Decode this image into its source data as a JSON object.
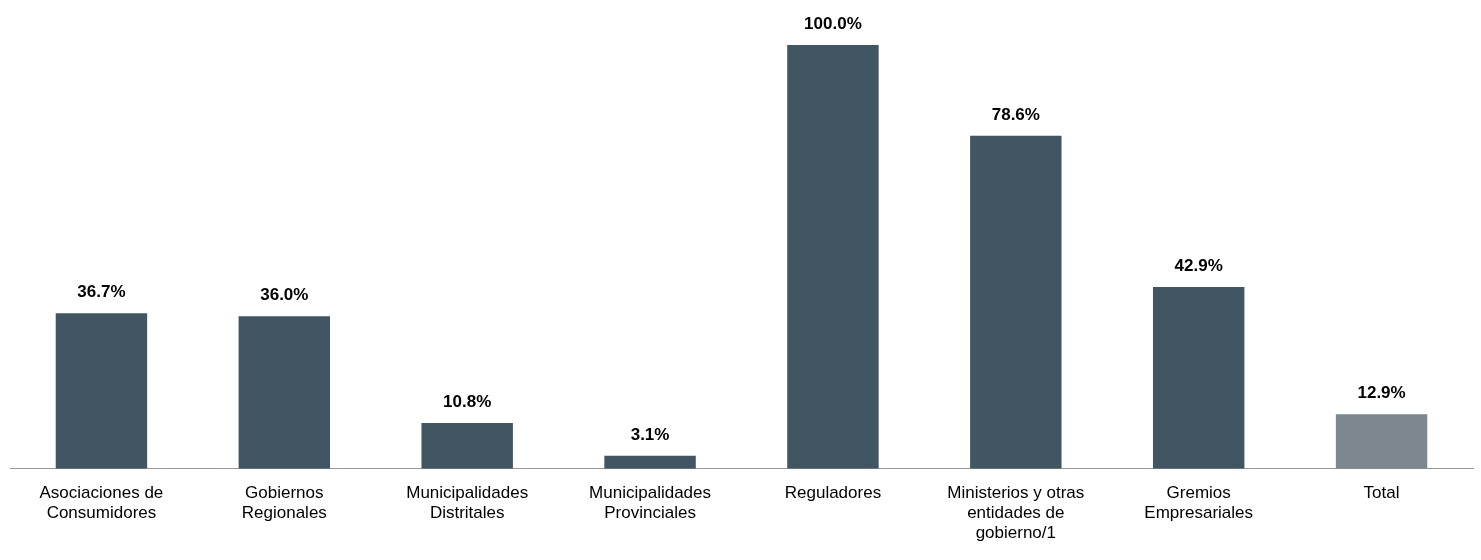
{
  "chart_data": {
    "type": "bar",
    "categories": [
      "Asociaciones de Consumidores",
      "Gobiernos Regionales",
      "Municipalidades Distritales",
      "Municipalidades Provinciales",
      "Reguladores",
      "Ministerios y otras entidades de gobierno/1",
      "Gremios Empresariales",
      "Total"
    ],
    "values": [
      36.7,
      36.0,
      10.8,
      3.1,
      100.0,
      78.6,
      42.9,
      12.9
    ],
    "value_labels": [
      "36.7%",
      "36.0%",
      "10.8%",
      "3.1%",
      "100.0%",
      "78.6%",
      "42.9%",
      "12.9%"
    ],
    "colors": [
      "#415563",
      "#415563",
      "#415563",
      "#415563",
      "#415563",
      "#415563",
      "#415563",
      "#7d8790"
    ],
    "grid": false,
    "legend": false,
    "tick_labels": "x"
  }
}
